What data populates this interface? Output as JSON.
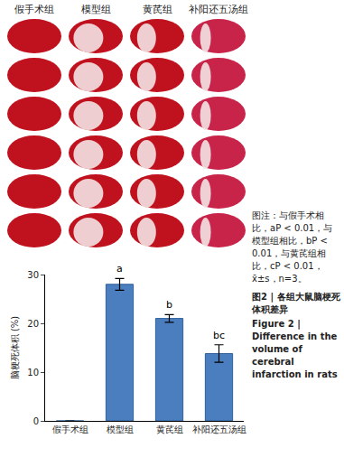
{
  "chart_data": {
    "type": "bar",
    "y_label": "脑梗死体积 (%)",
    "categories": [
      "假手术组",
      "模型组",
      "黄芪组",
      "补阳还五汤组"
    ],
    "values": [
      0,
      28,
      21,
      13.8
    ],
    "errors": [
      0,
      1.2,
      0.8,
      1.8
    ],
    "color": "#4a7ebf",
    "ylim": [
      0,
      30
    ],
    "yticks": [
      0,
      10,
      20,
      30
    ],
    "grid": false,
    "annotations": [
      {
        "category": "模型组",
        "text": "a"
      },
      {
        "category": "黄芪组",
        "text": "b"
      },
      {
        "category": "补阳还五汤组",
        "text": "bc"
      }
    ]
  },
  "panel": {
    "column_labels": [
      "假手术组",
      "模型组",
      "黄芪组",
      "补阳还五汤组"
    ]
  },
  "caption": {
    "note": "图注：与假手术相比，aP < 0.01，与模型组相比，bP < 0.01，与黄芪组相比，cP < 0.01，x̄±s，n=3。",
    "title_zh": "图2 | 各组大鼠脑梗死体积差异",
    "title_en": "Figure 2 | Difference in the volume of cerebral infarction in rats"
  }
}
